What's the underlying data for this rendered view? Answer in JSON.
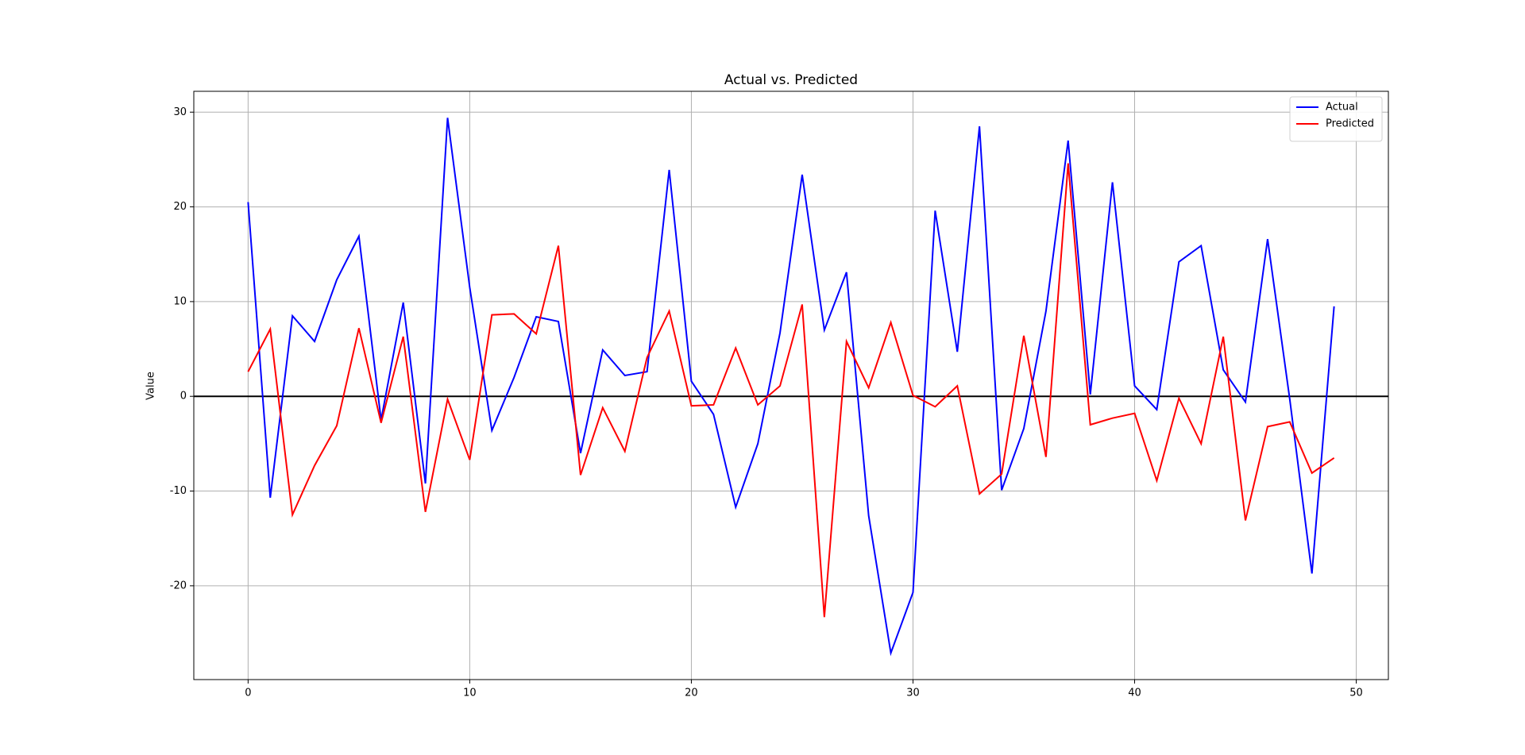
{
  "chart_data": {
    "type": "line",
    "title": "Actual vs. Predicted",
    "y_label": "Value",
    "x": [
      0,
      1,
      2,
      3,
      4,
      5,
      6,
      7,
      8,
      9,
      10,
      11,
      12,
      13,
      14,
      15,
      16,
      17,
      18,
      19,
      20,
      21,
      22,
      23,
      24,
      25,
      26,
      27,
      28,
      29,
      30,
      31,
      32,
      33,
      34,
      35,
      36,
      37,
      38,
      39,
      40,
      41,
      42,
      43,
      44,
      45,
      46,
      47,
      48,
      49
    ],
    "series": [
      {
        "name": "Actual",
        "color": "#0000ff",
        "values": [
          20.5,
          -10.7,
          8.5,
          5.8,
          12.3,
          16.9,
          -2.5,
          9.9,
          -9.2,
          29.4,
          11.5,
          -3.6,
          2.0,
          8.4,
          7.9,
          -6.0,
          4.9,
          2.2,
          2.6,
          23.9,
          1.6,
          -1.9,
          -11.7,
          -5.0,
          6.7,
          23.4,
          7.0,
          13.1,
          -12.6,
          -27.1,
          -20.7,
          19.6,
          4.7,
          28.5,
          -9.9,
          -3.4,
          9.0,
          27.0,
          0.2,
          22.6,
          1.1,
          -1.4,
          14.2,
          15.9,
          2.8,
          -0.6,
          16.6,
          -0.3,
          -18.7,
          9.5
        ]
      },
      {
        "name": "Predicted",
        "color": "#ff0000",
        "values": [
          2.6,
          7.1,
          -12.5,
          -7.3,
          -3.1,
          7.2,
          -2.8,
          6.3,
          -12.2,
          -0.3,
          -6.7,
          8.6,
          8.7,
          6.6,
          15.9,
          -8.3,
          -1.2,
          -5.8,
          4.1,
          9.0,
          -1.0,
          -0.9,
          5.1,
          -0.9,
          1.1,
          9.7,
          -23.3,
          5.8,
          0.9,
          7.8,
          0.1,
          -1.1,
          1.1,
          -10.3,
          -8.2,
          6.4,
          -6.4,
          24.6,
          -3.0,
          -2.3,
          -1.8,
          -8.9,
          -0.2,
          -5.0,
          6.3,
          -13.1,
          -3.2,
          -2.7,
          -8.1,
          -6.5
        ]
      }
    ],
    "hline": {
      "y": 0,
      "color": "#000000"
    },
    "xlim": [
      -2.45,
      51.45
    ],
    "ylim": [
      -29.9,
      32.2
    ],
    "xticks": [
      0,
      10,
      20,
      30,
      40,
      50
    ],
    "yticks": [
      -20,
      -10,
      0,
      10,
      20,
      30
    ],
    "grid": true,
    "legend": "upper right"
  }
}
